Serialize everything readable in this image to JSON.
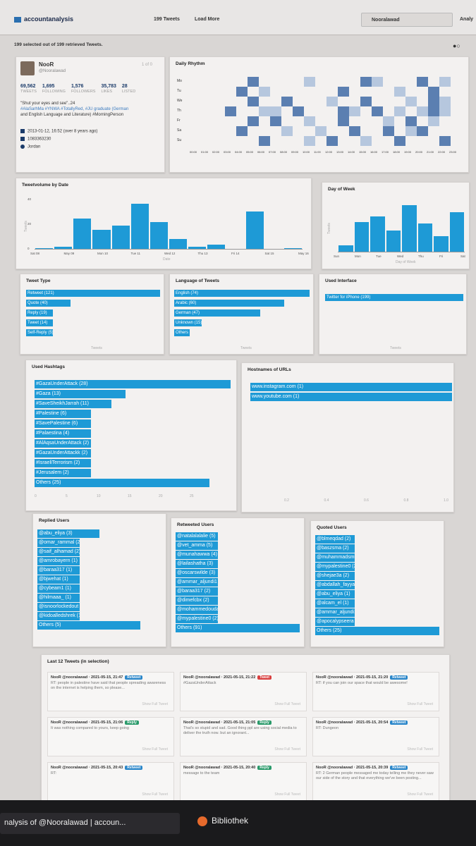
{
  "header": {
    "brand": "accountanalysis",
    "nav_tweets": "199 Tweets",
    "nav_load_more": "Load More",
    "search_value": "Nooralawad",
    "analyze_label": "Analy"
  },
  "selection_info": "199 selected out of 199 retrieved Tweets.",
  "profile": {
    "name": "NooR",
    "handle": "@Nooralawad",
    "count_label": "1 of 0",
    "stats": [
      {
        "value": "69,562",
        "label": "TWEETS"
      },
      {
        "value": "1,695",
        "label": "FOLLOWING"
      },
      {
        "value": "1,576",
        "label": "FOLLOWERS"
      },
      {
        "value": "35,783",
        "label": "LIKES"
      },
      {
        "value": "28",
        "label": "LISTED"
      }
    ],
    "bio_line1": "\"Shut your eyes and see\"..24",
    "bio_line2": "#AlaSarhMa #YNWA #TotallyRed, #JU graduate (German",
    "bio_line3": "and English Language and Literature) #MorningPerson",
    "created": "2013-01-12, 16:52 (over 8 years ago)",
    "id": "1083363230",
    "location": "Jordan"
  },
  "daily_rhythm": {
    "title": "Daily Rhythm",
    "days": [
      "Mo",
      "Tu",
      "We",
      "Th",
      "Fr",
      "Sa",
      "Su"
    ],
    "hours": [
      "00:00",
      "01:00",
      "02:00",
      "03:00",
      "04:00",
      "05:00",
      "06:00",
      "07:00",
      "08:00",
      "09:00",
      "10:00",
      "11:00",
      "12:00",
      "13:00",
      "14:00",
      "15:00",
      "16:00",
      "17:00",
      "18:00",
      "19:00",
      "20:00",
      "21:00",
      "22:00",
      "23:00"
    ]
  },
  "tweetvolume": {
    "title": "Tweetvolume by Date",
    "ylabel": "Tweets",
    "xlabel": "Date",
    "yticks": [
      "0",
      "20",
      "40"
    ],
    "xticks": [
      "Sat 08",
      "May 09",
      "Mon 10",
      "Tue 11",
      "Wed 12",
      "Thu 13",
      "Fri 14",
      "Sat 15",
      "May 16"
    ]
  },
  "day_of_week": {
    "title": "Day of Week",
    "ylabel": "Tweets",
    "xlabel": "Day of Week",
    "xticks": [
      "Sun",
      "Mon",
      "Tue",
      "Wed",
      "Thu",
      "Fri",
      "Sat"
    ]
  },
  "tweet_type": {
    "title": "Tweet Type",
    "xlabel": "Tweets",
    "items": [
      {
        "label": "Retweet (121)",
        "value": 121
      },
      {
        "label": "Quote (40)",
        "value": 40
      },
      {
        "label": "Reply (19)",
        "value": 19
      },
      {
        "label": "Tweet (14)",
        "value": 14
      },
      {
        "label": "Self-Reply (5)",
        "value": 5
      }
    ]
  },
  "language": {
    "title": "Language of Tweets",
    "xlabel": "Tweets",
    "items": [
      {
        "label": "English (74)",
        "value": 74
      },
      {
        "label": "Arabic (60)",
        "value": 60
      },
      {
        "label": "German (47)",
        "value": 47
      },
      {
        "label": "Unknown (15)",
        "value": 15
      },
      {
        "label": "Others (3)",
        "value": 3
      }
    ]
  },
  "interface": {
    "title": "Used Interface",
    "xlabel": "Tweets",
    "items": [
      {
        "label": "Twitter for iPhone (199)",
        "value": 199
      }
    ]
  },
  "hashtags": {
    "title": "Used Hashtags",
    "items": [
      {
        "label": "#GazaUnderAttack (28)",
        "value": 28
      },
      {
        "label": "#Gaza (13)",
        "value": 13
      },
      {
        "label": "#SaveSheikhJarrah (11)",
        "value": 11
      },
      {
        "label": "#Palestine (6)",
        "value": 6
      },
      {
        "label": "#SavePalestine (6)",
        "value": 6
      },
      {
        "label": "#Palaestina (4)",
        "value": 4
      },
      {
        "label": "#AlAqsaUnderAttack (2)",
        "value": 2
      },
      {
        "label": "#GazaUnderAttackk (2)",
        "value": 2
      },
      {
        "label": "#IsraeliTerrorism (2)",
        "value": 2
      },
      {
        "label": "#Jerusalem (2)",
        "value": 2
      },
      {
        "label": "Others (25)",
        "value": 25
      }
    ],
    "xticks": [
      "0",
      "5",
      "10",
      "15",
      "20",
      "25"
    ]
  },
  "hostnames": {
    "title": "Hostnames of URLs",
    "items": [
      {
        "label": "www.instagram.com (1)",
        "value": 1
      },
      {
        "label": "www.youtube.com (1)",
        "value": 1
      }
    ],
    "xticks": [
      "0.2",
      "0.4",
      "0.6",
      "0.8",
      "1.0"
    ]
  },
  "replied": {
    "title": "Replied Users",
    "items": [
      {
        "label": "@abu_eliya (3)",
        "value": 3
      },
      {
        "label": "@omar_rammal (2)",
        "value": 2
      },
      {
        "label": "@saif_alhamad (2)",
        "value": 2
      },
      {
        "label": "@amrobayern (1)",
        "value": 1
      },
      {
        "label": "@baraa317 (1)",
        "value": 1
      },
      {
        "label": "@bjwehat (1)",
        "value": 1
      },
      {
        "label": "@cybeam1 (1)",
        "value": 1
      },
      {
        "label": "@hilmaaa_ (1)",
        "value": 1
      },
      {
        "label": "@isnoorlockedout (1)",
        "value": 1
      },
      {
        "label": "@kidoalledshrek (1)",
        "value": 1
      },
      {
        "label": "Others (5)",
        "value": 5
      }
    ]
  },
  "retweeted": {
    "title": "Retweeted Users",
    "items": [
      {
        "label": "@natalalalalie (5)",
        "value": 5
      },
      {
        "label": "@vet_amma (5)",
        "value": 5
      },
      {
        "label": "@munahawwa (4)",
        "value": 4
      },
      {
        "label": "@lailashatha (3)",
        "value": 3
      },
      {
        "label": "@oscarswilde (3)",
        "value": 3
      },
      {
        "label": "@ammar_aljundi1 (2)",
        "value": 2
      },
      {
        "label": "@baraa317 (2)",
        "value": 2
      },
      {
        "label": "@dimefcbx (2)",
        "value": 2
      },
      {
        "label": "@mohammedoudah0 (2)",
        "value": 2
      },
      {
        "label": "@mypalestine0 (2)",
        "value": 2
      },
      {
        "label": "Others (91)",
        "value": 91
      }
    ]
  },
  "quoted": {
    "title": "Quoted Users",
    "items": [
      {
        "label": "@blmeqdad (2)",
        "value": 2
      },
      {
        "label": "@baszsma (2)",
        "value": 2
      },
      {
        "label": "@muhammadsmiry (2)",
        "value": 2
      },
      {
        "label": "@mypalestine0 (2)",
        "value": 2
      },
      {
        "label": "@shejae3a (2)",
        "value": 2
      },
      {
        "label": "@abdallah_fayyad (1)",
        "value": 1
      },
      {
        "label": "@abu_eliya (1)",
        "value": 1
      },
      {
        "label": "@alcam_el (1)",
        "value": 1
      },
      {
        "label": "@ammar_aljundi1 (1)",
        "value": 1
      },
      {
        "label": "@apocalypseera (1)",
        "value": 1
      },
      {
        "label": "Others (25)",
        "value": 25
      }
    ]
  },
  "last_tweets": {
    "title": "Last 12 Tweets (in selection)",
    "show_more": "Show Full Tweet",
    "items": [
      {
        "head": "NooR @nooralawad · 2021-05-15, 21:47",
        "badge": "Retweet",
        "color": "#2a86c9",
        "body": "RT: people in palestine have said that people spreading awareness on the internet is helping them, so please..."
      },
      {
        "head": "NooR @nooralawad · 2021-05-15, 21:22",
        "badge": "Tweet",
        "color": "#d94040",
        "body": "#GazaUnderAttack"
      },
      {
        "head": "NooR @nooralawad · 2021-05-15, 21:20",
        "badge": "Retweet",
        "color": "#2a86c9",
        "body": "RT: if you can join our space that would be awesome!"
      },
      {
        "head": "NooR @nooralawad · 2021-05-15, 21:06",
        "badge": "Reply",
        "color": "#2a9a6a",
        "body": "It was nothing compared to yours, keep going"
      },
      {
        "head": "NooR @nooralawad · 2021-05-15, 21:05",
        "badge": "Reply",
        "color": "#2a9a6a",
        "body": "That's so stupid and sad. Good thing ppl are using social media to deliver the truth now. but an ignorant..."
      },
      {
        "head": "NooR @nooralawad · 2021-05-15, 20:54",
        "badge": "Retweet",
        "color": "#2a86c9",
        "body": "RT: Dungeon"
      },
      {
        "head": "NooR @nooralawad · 2021-05-15, 20:43",
        "badge": "Retweet",
        "color": "#2a86c9",
        "body": "RT:"
      },
      {
        "head": "NooR @nooralawad · 2021-05-15, 20:40",
        "badge": "Reply",
        "color": "#2a9a6a",
        "body": "message to the team"
      },
      {
        "head": "NooR @nooralawad · 2021-05-15, 20:39",
        "badge": "Retweet",
        "color": "#2a86c9",
        "body": "RT: 2 German people messaged me today telling me they never saw our side of the story and that everything we've been posting..."
      }
    ]
  },
  "taskbar": {
    "tab1": "nalysis of @Nooralawad | accoun...",
    "tab2": "Bibliothek"
  },
  "colors": {
    "bar": "#1e9ad6",
    "heat_dark": "#5b7fb1",
    "heat_light": "#b6c7de"
  }
}
